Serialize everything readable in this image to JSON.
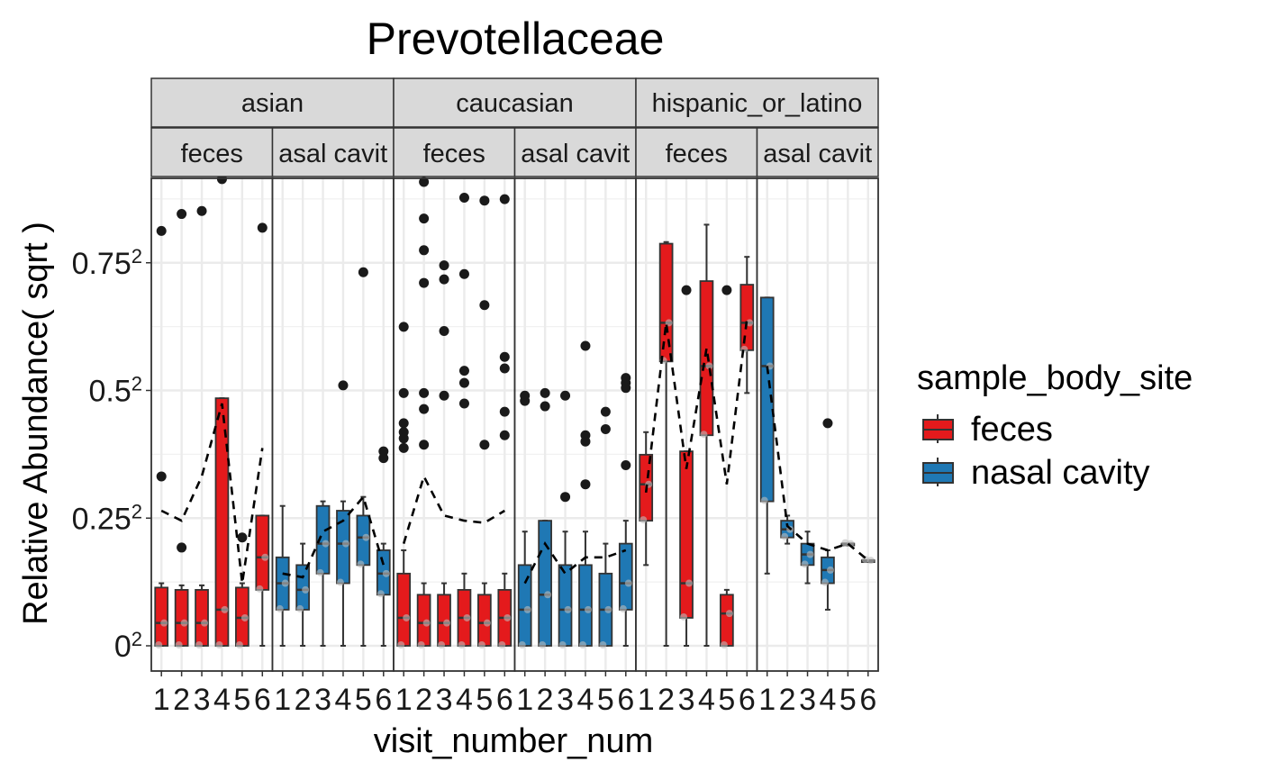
{
  "chart_data": {
    "type": "box",
    "title": "Prevotellaceae",
    "xlabel": "visit_number_num",
    "ylabel": "Relative Abundance( sqrt )",
    "y_scale": "sqrt",
    "ylim": [
      0,
      0.9
    ],
    "y_ticks": [
      {
        "base": "0",
        "exp": "2",
        "value": 0
      },
      {
        "base": "0.25",
        "exp": "2",
        "value": 0.25
      },
      {
        "base": "0.5",
        "exp": "2",
        "value": 0.5
      },
      {
        "base": "0.75",
        "exp": "2",
        "value": 0.75
      }
    ],
    "x_ticks": [
      "1",
      "2",
      "3",
      "4",
      "5",
      "6"
    ],
    "legend": {
      "title": "sample_body_site",
      "position": "right",
      "entries": [
        {
          "label": "feces",
          "color": "#e41a1c"
        },
        {
          "label": "nasal cavity",
          "color": "#1f78b4"
        }
      ]
    },
    "facets": [
      {
        "group": "asian",
        "site": "feces",
        "strip": "feces",
        "color": "#e41a1c",
        "boxes": [
          {
            "x": 1,
            "q1": 0.0,
            "med": 0.002,
            "q3": 0.013,
            "lo": 0.0,
            "hi": 0.015
          },
          {
            "x": 2,
            "q1": 0.0,
            "med": 0.002,
            "q3": 0.012,
            "lo": 0.0,
            "hi": 0.014
          },
          {
            "x": 3,
            "q1": 0.0,
            "med": 0.002,
            "q3": 0.012,
            "lo": 0.0,
            "hi": 0.014
          },
          {
            "x": 4,
            "q1": 0.0,
            "med": 0.005,
            "q3": 0.235,
            "lo": 0.0,
            "hi": 0.235
          },
          {
            "x": 5,
            "q1": 0.0,
            "med": 0.003,
            "q3": 0.013,
            "lo": 0.0,
            "hi": 0.015
          },
          {
            "x": 6,
            "q1": 0.012,
            "med": 0.03,
            "q3": 0.065,
            "lo": 0.0,
            "hi": 0.065
          }
        ],
        "outliers": [
          [
            1,
            0.66
          ],
          [
            1,
            0.11
          ],
          [
            2,
            0.715
          ],
          [
            2,
            0.037
          ],
          [
            3,
            0.725
          ],
          [
            4,
            0.87
          ],
          [
            4,
            0.835
          ],
          [
            5,
            0.045
          ],
          [
            6,
            0.67
          ]
        ],
        "mean_line": [
          0.07,
          0.06,
          0.11,
          0.225,
          0.015,
          0.15
        ]
      },
      {
        "group": "asian",
        "site": "nasal cavity",
        "strip": "asal cavit",
        "color": "#1f78b4",
        "boxes": [
          {
            "x": 1,
            "q1": 0.005,
            "med": 0.015,
            "q3": 0.03,
            "lo": 0.0,
            "hi": 0.075
          },
          {
            "x": 2,
            "q1": 0.005,
            "med": 0.012,
            "q3": 0.025,
            "lo": 0.0,
            "hi": 0.04
          },
          {
            "x": 3,
            "q1": 0.02,
            "med": 0.04,
            "q3": 0.075,
            "lo": 0.0,
            "hi": 0.08
          },
          {
            "x": 4,
            "q1": 0.015,
            "med": 0.04,
            "q3": 0.07,
            "lo": 0.0,
            "hi": 0.08
          },
          {
            "x": 5,
            "q1": 0.025,
            "med": 0.045,
            "q3": 0.065,
            "lo": 0.0,
            "hi": 0.085
          },
          {
            "x": 6,
            "q1": 0.01,
            "med": 0.02,
            "q3": 0.035,
            "lo": 0.0,
            "hi": 0.04
          }
        ],
        "outliers": [
          [
            4,
            0.26
          ],
          [
            5,
            0.535
          ],
          [
            6,
            0.145
          ],
          [
            6,
            0.135
          ]
        ],
        "mean_line": [
          0.02,
          0.018,
          0.05,
          0.06,
          0.085,
          0.025
        ]
      },
      {
        "group": "caucasian",
        "site": "feces",
        "strip": "feces",
        "color": "#e41a1c",
        "boxes": [
          {
            "x": 1,
            "q1": 0.0,
            "med": 0.003,
            "q3": 0.02,
            "lo": 0.0,
            "hi": 0.035
          },
          {
            "x": 2,
            "q1": 0.0,
            "med": 0.002,
            "q3": 0.01,
            "lo": 0.0,
            "hi": 0.015
          },
          {
            "x": 3,
            "q1": 0.0,
            "med": 0.002,
            "q3": 0.01,
            "lo": 0.0,
            "hi": 0.015
          },
          {
            "x": 4,
            "q1": 0.0,
            "med": 0.003,
            "q3": 0.012,
            "lo": 0.0,
            "hi": 0.02
          },
          {
            "x": 5,
            "q1": 0.0,
            "med": 0.002,
            "q3": 0.01,
            "lo": 0.0,
            "hi": 0.015
          },
          {
            "x": 6,
            "q1": 0.0,
            "med": 0.003,
            "q3": 0.012,
            "lo": 0.0,
            "hi": 0.02
          }
        ],
        "outliers": [
          [
            1,
            0.39
          ],
          [
            1,
            0.19
          ],
          [
            1,
            0.175
          ],
          [
            1,
            0.165
          ],
          [
            1,
            0.15
          ],
          [
            1,
            0.245
          ],
          [
            2,
            0.825
          ],
          [
            2,
            0.7
          ],
          [
            2,
            0.6
          ],
          [
            2,
            0.505
          ],
          [
            2,
            0.245
          ],
          [
            2,
            0.215
          ],
          [
            2,
            0.155
          ],
          [
            3,
            0.555
          ],
          [
            3,
            0.515
          ],
          [
            3,
            0.38
          ],
          [
            3,
            0.24
          ],
          [
            4,
            0.77
          ],
          [
            4,
            0.53
          ],
          [
            4,
            0.29
          ],
          [
            4,
            0.265
          ],
          [
            4,
            0.225
          ],
          [
            5,
            0.76
          ],
          [
            5,
            0.445
          ],
          [
            5,
            0.155
          ],
          [
            6,
            0.765
          ],
          [
            6,
            0.32
          ],
          [
            6,
            0.295
          ],
          [
            6,
            0.21
          ],
          [
            6,
            0.17
          ]
        ],
        "mean_line": [
          0.04,
          0.11,
          0.065,
          0.06,
          0.058,
          0.07
        ]
      },
      {
        "group": "caucasian",
        "site": "nasal cavity",
        "strip": "asal cavit",
        "color": "#1f78b4",
        "boxes": [
          {
            "x": 1,
            "q1": 0.0,
            "med": 0.005,
            "q3": 0.025,
            "lo": 0.0,
            "hi": 0.05
          },
          {
            "x": 2,
            "q1": 0.0,
            "med": 0.01,
            "q3": 0.06,
            "lo": 0.0,
            "hi": 0.06
          },
          {
            "x": 3,
            "q1": 0.0,
            "med": 0.005,
            "q3": 0.025,
            "lo": 0.0,
            "hi": 0.05
          },
          {
            "x": 4,
            "q1": 0.0,
            "med": 0.005,
            "q3": 0.025,
            "lo": 0.0,
            "hi": 0.05
          },
          {
            "x": 5,
            "q1": 0.0,
            "med": 0.005,
            "q3": 0.02,
            "lo": 0.0,
            "hi": 0.04
          },
          {
            "x": 6,
            "q1": 0.005,
            "med": 0.015,
            "q3": 0.04,
            "lo": 0.0,
            "hi": 0.06
          }
        ],
        "outliers": [
          [
            1,
            0.23
          ],
          [
            1,
            0.24
          ],
          [
            2,
            0.245
          ],
          [
            2,
            0.22
          ],
          [
            3,
            0.24
          ],
          [
            3,
            0.085
          ],
          [
            4,
            0.345
          ],
          [
            4,
            0.17
          ],
          [
            4,
            0.16
          ],
          [
            4,
            0.1
          ],
          [
            5,
            0.21
          ],
          [
            5,
            0.18
          ],
          [
            6,
            0.275
          ],
          [
            6,
            0.265
          ],
          [
            6,
            0.255
          ],
          [
            6,
            0.125
          ]
        ],
        "mean_line": [
          0.015,
          0.04,
          0.02,
          0.03,
          0.03,
          0.035
        ]
      },
      {
        "group": "hispanic_or_latino",
        "site": "feces",
        "strip": "feces",
        "color": "#e41a1c",
        "boxes": [
          {
            "x": 1,
            "q1": 0.06,
            "med": 0.1,
            "q3": 0.14,
            "lo": 0.025,
            "hi": 0.175
          },
          {
            "x": 2,
            "q1": 0.31,
            "med": 0.4,
            "q3": 0.62,
            "lo": 0.0,
            "hi": 0.625
          },
          {
            "x": 3,
            "q1": 0.003,
            "med": 0.015,
            "q3": 0.145,
            "lo": 0.0,
            "hi": 0.145
          },
          {
            "x": 4,
            "q1": 0.17,
            "med": 0.3,
            "q3": 0.51,
            "lo": 0.0,
            "hi": 0.68
          },
          {
            "x": 5,
            "q1": 0.0,
            "med": 0.004,
            "q3": 0.01,
            "lo": 0.0,
            "hi": 0.012
          },
          {
            "x": 6,
            "q1": 0.335,
            "med": 0.4,
            "q3": 0.5,
            "lo": 0.245,
            "hi": 0.58
          }
        ],
        "outliers": [
          [
            3,
            0.485
          ],
          [
            5,
            0.485
          ]
        ],
        "mean_line": [
          0.09,
          0.4,
          0.12,
          0.34,
          0.1,
          0.41
        ]
      },
      {
        "group": "hispanic_or_latino",
        "site": "nasal cavity",
        "strip": "asal cavit",
        "color": "#1f78b4",
        "boxes": [
          {
            "x": 1,
            "q1": 0.08,
            "med": 0.3,
            "q3": 0.465,
            "lo": 0.02,
            "hi": 0.465
          },
          {
            "x": 2,
            "q1": 0.045,
            "med": 0.052,
            "q3": 0.06,
            "lo": 0.04,
            "hi": 0.065
          },
          {
            "x": 3,
            "q1": 0.025,
            "med": 0.032,
            "q3": 0.04,
            "lo": 0.015,
            "hi": 0.05
          },
          {
            "x": 4,
            "q1": 0.015,
            "med": 0.022,
            "q3": 0.03,
            "lo": 0.005,
            "hi": 0.035
          },
          {
            "x": 5,
            "q1": 0.04,
            "med": 0.04,
            "q3": 0.04,
            "lo": 0.04,
            "hi": 0.04
          },
          {
            "x": 6,
            "q1": 0.028,
            "med": 0.028,
            "q3": 0.028,
            "lo": 0.028,
            "hi": 0.028
          }
        ],
        "outliers": [
          [
            4,
            0.19
          ]
        ],
        "mean_line": [
          0.3,
          0.055,
          0.04,
          0.035,
          0.04,
          0.028
        ]
      }
    ],
    "groups": [
      "asian",
      "caucasian",
      "hispanic_or_latino"
    ]
  }
}
